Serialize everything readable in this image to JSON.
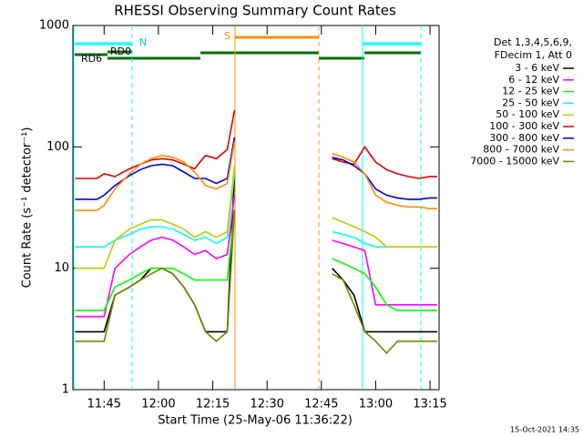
{
  "chart_data": {
    "type": "line",
    "title": "RHESSI Observing Summary Count Rates",
    "x_label": "Start Time (25-May-06 11:36:22)",
    "y_label": "Count Rate (s⁻¹ detector⁻¹)",
    "footer": "15-Oct-2021 14:35",
    "legend_title": [
      "Det 1,3,4,5,6,9,",
      "FDecim 1, Att 0"
    ],
    "annotations": [
      "N",
      "S",
      "RD0",
      "RD6"
    ],
    "log_scale": true,
    "xlim": [
      36.37,
      137.5
    ],
    "xticks": [
      {
        "value": 45,
        "label": "11:45"
      },
      {
        "value": 60,
        "label": "12:00"
      },
      {
        "value": 75,
        "label": "12:15"
      },
      {
        "value": 90,
        "label": "12:30"
      },
      {
        "value": 105,
        "label": "12:45"
      },
      {
        "value": 120,
        "label": "13:00"
      },
      {
        "value": 135,
        "label": "13:15"
      }
    ],
    "ylim": [
      1,
      1000
    ],
    "yticks": [
      1,
      10,
      100,
      1000
    ],
    "x": [
      37,
      40,
      43,
      45,
      48,
      52,
      55,
      58,
      61,
      64,
      67,
      70,
      73,
      76,
      79,
      81,
      95,
      108,
      111,
      114,
      117,
      120,
      123,
      126,
      129,
      132,
      135,
      137
    ],
    "series": [
      {
        "name": "3 - 6 keV",
        "color": "#000000",
        "values": [
          3,
          3,
          3,
          3,
          6,
          7,
          8,
          10,
          10,
          9,
          7,
          5,
          3,
          3,
          3,
          60,
          null,
          10,
          8,
          6,
          3,
          3,
          3,
          3,
          3,
          3,
          3,
          3
        ]
      },
      {
        "name": "6 - 12 keV",
        "color": "#ff00ff",
        "values": [
          4,
          4,
          4,
          4,
          10,
          13,
          15,
          17,
          18,
          17,
          15,
          13,
          14,
          12,
          13,
          40,
          null,
          17,
          16,
          15,
          14,
          5,
          5,
          5,
          5,
          5,
          5,
          5
        ]
      },
      {
        "name": "12 - 25 keV",
        "color": "#00ff00",
        "values": [
          4.5,
          4.5,
          4.5,
          4.5,
          7,
          8,
          9,
          10,
          10,
          10,
          9,
          8,
          8,
          8,
          8,
          30,
          null,
          12,
          11,
          10,
          9,
          7,
          5,
          4.5,
          4.5,
          4.5,
          4.5,
          4.5
        ]
      },
      {
        "name": "25 - 50 keV",
        "color": "#00ffff",
        "values": [
          15,
          15,
          15,
          15,
          17,
          19,
          21,
          22,
          22,
          21,
          19,
          17,
          18,
          16,
          18,
          60,
          null,
          20,
          19,
          18,
          16,
          15,
          15,
          15,
          15,
          15,
          15,
          15
        ]
      },
      {
        "name": "50 - 100 keV",
        "color": "#c8c800",
        "values": [
          10,
          10,
          10,
          10,
          17,
          21,
          23,
          25,
          25,
          23,
          21,
          18,
          20,
          18,
          20,
          70,
          null,
          26,
          24,
          22,
          20,
          18,
          15,
          15,
          15,
          15,
          15,
          15
        ]
      },
      {
        "name": "100 - 300 keV",
        "color": "#e00000",
        "values": [
          55,
          55,
          55,
          60,
          57,
          66,
          72,
          78,
          80,
          78,
          72,
          66,
          85,
          80,
          95,
          200,
          null,
          80,
          75,
          72,
          100,
          75,
          65,
          60,
          57,
          55,
          57,
          57
        ]
      },
      {
        "name": "300 - 800 keV",
        "color": "#0000e0",
        "values": [
          37,
          37,
          37,
          40,
          48,
          58,
          65,
          70,
          72,
          70,
          62,
          55,
          55,
          50,
          55,
          120,
          null,
          82,
          78,
          70,
          60,
          45,
          40,
          38,
          37,
          37,
          38,
          38
        ]
      },
      {
        "name": "800 - 7000 keV",
        "color": "#ff8c00",
        "values": [
          30,
          30,
          30,
          33,
          45,
          60,
          72,
          80,
          85,
          82,
          75,
          62,
          48,
          45,
          50,
          110,
          null,
          88,
          82,
          75,
          60,
          40,
          35,
          33,
          32,
          32,
          31,
          31
        ]
      },
      {
        "name": "7000 - 15000 keV",
        "color": "#808000",
        "values": [
          2.5,
          2.5,
          2.5,
          2.5,
          6,
          7,
          8,
          9,
          10,
          9,
          7,
          5,
          3,
          2.5,
          3,
          30,
          null,
          9,
          8,
          5,
          3,
          2.5,
          2,
          2.5,
          2.5,
          2.5,
          2.5,
          2.5
        ]
      }
    ]
  }
}
